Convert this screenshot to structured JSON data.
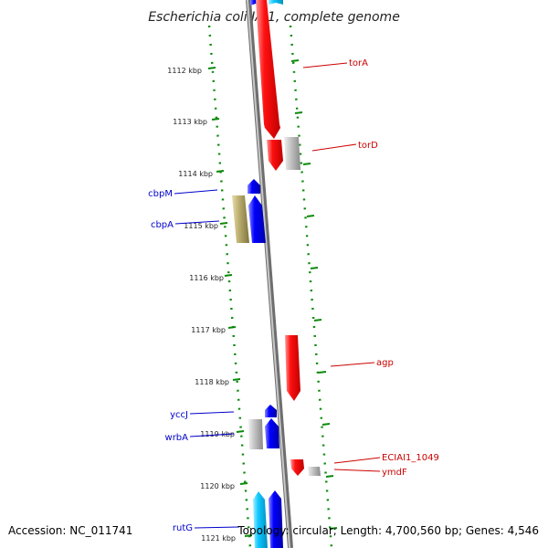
{
  "title": "Escherichia coli IAI1, complete genome",
  "footer": {
    "accession": "Accession: NC_011741",
    "summary": "Topology: circular; Length: 4,700,560 bp; Genes: 4,546"
  },
  "colors": {
    "forward": "#ff0000",
    "reverse": "#0000ff",
    "reverse_light": "#00ccff",
    "other": "#b8b8b8",
    "olive": "#b8a868",
    "scale": "#0a8a0a",
    "backbone": "#888888"
  },
  "scale_ticks": [
    "1112 kbp",
    "1113 kbp",
    "1114 kbp",
    "1115 kbp",
    "1116 kbp",
    "1117 kbp",
    "1118 kbp",
    "1119 kbp",
    "1120 kbp",
    "1121 kbp"
  ],
  "genes": [
    {
      "name": "torA",
      "color": "forward"
    },
    {
      "name": "torD",
      "color": "forward"
    },
    {
      "name": "cbpM",
      "color": "reverse"
    },
    {
      "name": "cbpA",
      "color": "reverse"
    },
    {
      "name": "agp",
      "color": "forward"
    },
    {
      "name": "yccJ",
      "color": "reverse"
    },
    {
      "name": "wrbA",
      "color": "reverse"
    },
    {
      "name": "ECIAI1_1049",
      "color": "forward"
    },
    {
      "name": "ymdF",
      "color": "forward"
    },
    {
      "name": "rutG",
      "color": "reverse"
    }
  ]
}
